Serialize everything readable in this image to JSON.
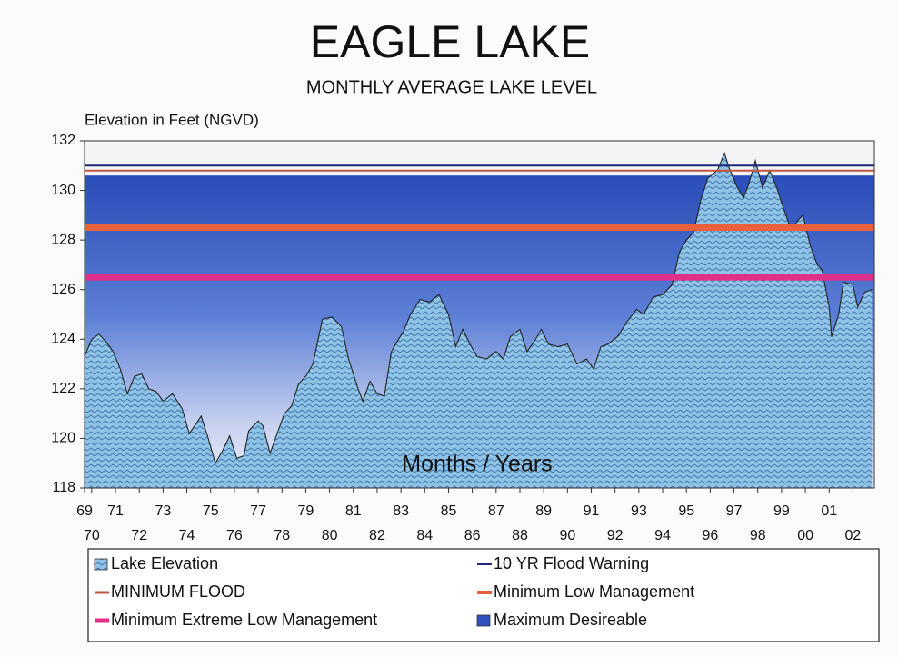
{
  "chart_data": {
    "type": "area",
    "title": "EAGLE LAKE",
    "subtitle": "MONTHLY AVERAGE LAKE LEVEL",
    "y_label": "Elevation in Feet (NGVD)",
    "x_label": "Months / Years",
    "xlim": [
      1969.7,
      2002.9
    ],
    "ylim": [
      118,
      132
    ],
    "yticks": [
      118,
      120,
      122,
      124,
      126,
      128,
      130,
      132
    ],
    "xticks": [
      {
        "value": 1969.7,
        "label": "69"
      },
      {
        "value": 1970,
        "label": "70"
      },
      {
        "value": 1971,
        "label": "71"
      },
      {
        "value": 1972,
        "label": "72"
      },
      {
        "value": 1973,
        "label": "73"
      },
      {
        "value": 1974,
        "label": "74"
      },
      {
        "value": 1975,
        "label": "75"
      },
      {
        "value": 1976,
        "label": "76"
      },
      {
        "value": 1977,
        "label": "77"
      },
      {
        "value": 1978,
        "label": "78"
      },
      {
        "value": 1979,
        "label": "79"
      },
      {
        "value": 1980,
        "label": "80"
      },
      {
        "value": 1981,
        "label": "81"
      },
      {
        "value": 1982,
        "label": "82"
      },
      {
        "value": 1983,
        "label": "83"
      },
      {
        "value": 1984,
        "label": "84"
      },
      {
        "value": 1985,
        "label": "85"
      },
      {
        "value": 1986,
        "label": "86"
      },
      {
        "value": 1987,
        "label": "87"
      },
      {
        "value": 1988,
        "label": "88"
      },
      {
        "value": 1989,
        "label": "89"
      },
      {
        "value": 1990,
        "label": "90"
      },
      {
        "value": 1991,
        "label": "91"
      },
      {
        "value": 1992,
        "label": "92"
      },
      {
        "value": 1993,
        "label": "93"
      },
      {
        "value": 1994,
        "label": "94"
      },
      {
        "value": 1995,
        "label": "95"
      },
      {
        "value": 1996,
        "label": "96"
      },
      {
        "value": 1997,
        "label": "97"
      },
      {
        "value": 1998,
        "label": "98"
      },
      {
        "value": 1999,
        "label": "99"
      },
      {
        "value": 2000,
        "label": "00"
      },
      {
        "value": 2001,
        "label": "01"
      },
      {
        "value": 2002,
        "label": "02"
      }
    ],
    "x": [
      1969.7,
      1970.0,
      1970.3,
      1970.6,
      1970.9,
      1971.2,
      1971.5,
      1971.8,
      1972.1,
      1972.4,
      1972.7,
      1973.0,
      1973.4,
      1973.8,
      1974.1,
      1974.4,
      1974.6,
      1974.9,
      1975.2,
      1975.5,
      1975.8,
      1976.1,
      1976.4,
      1976.6,
      1977.0,
      1977.2,
      1977.5,
      1977.8,
      1978.1,
      1978.4,
      1978.7,
      1979.0,
      1979.3,
      1979.7,
      1980.1,
      1980.5,
      1980.8,
      1981.2,
      1981.4,
      1981.7,
      1982.0,
      1982.3,
      1982.6,
      1982.9,
      1983.1,
      1983.4,
      1983.8,
      1984.2,
      1984.6,
      1985.0,
      1985.3,
      1985.6,
      1985.9,
      1986.2,
      1986.6,
      1987.0,
      1987.3,
      1987.6,
      1988.0,
      1988.3,
      1988.6,
      1988.9,
      1989.2,
      1989.6,
      1990.0,
      1990.4,
      1990.8,
      1991.1,
      1991.4,
      1991.7,
      1992.1,
      1992.5,
      1992.9,
      1993.2,
      1993.6,
      1994.0,
      1994.4,
      1994.7,
      1995.0,
      1995.3,
      1995.6,
      1995.9,
      1996.3,
      1996.6,
      1996.8,
      1997.1,
      1997.4,
      1997.6,
      1997.9,
      1998.2,
      1998.5,
      1998.8,
      1999.0,
      1999.4,
      1999.7,
      1999.9,
      2000.2,
      2000.5,
      2000.7,
      2001.0,
      2001.1,
      2001.4,
      2001.6,
      2002.0,
      2002.2,
      2002.5,
      2002.8
    ],
    "series": [
      {
        "name": "Lake Elevation",
        "color": "#8fc3e6",
        "values": [
          123.3,
          124.0,
          124.2,
          123.9,
          123.5,
          122.8,
          121.8,
          122.5,
          122.6,
          122.0,
          121.9,
          121.5,
          121.8,
          121.2,
          120.2,
          120.6,
          120.9,
          120.0,
          119.0,
          119.5,
          120.1,
          119.2,
          119.3,
          120.3,
          120.7,
          120.5,
          119.4,
          120.2,
          121.0,
          121.3,
          122.2,
          122.5,
          123.0,
          124.8,
          124.9,
          124.5,
          123.2,
          122.0,
          121.5,
          122.3,
          121.8,
          121.7,
          123.5,
          124.0,
          124.3,
          125.0,
          125.6,
          125.5,
          125.8,
          125.0,
          123.7,
          124.4,
          123.8,
          123.3,
          123.2,
          123.5,
          123.2,
          124.1,
          124.4,
          123.5,
          123.9,
          124.4,
          123.8,
          123.7,
          123.8,
          123.0,
          123.2,
          122.8,
          123.7,
          123.8,
          124.1,
          124.7,
          125.2,
          125.0,
          125.7,
          125.8,
          126.2,
          127.5,
          128.0,
          128.3,
          129.6,
          130.5,
          130.8,
          131.5,
          130.9,
          130.2,
          129.7,
          130.2,
          131.2,
          130.1,
          130.8,
          130.1,
          129.5,
          128.4,
          128.8,
          129.0,
          127.8,
          127.0,
          126.8,
          125.3,
          124.1,
          125.0,
          126.3,
          126.2,
          125.3,
          125.9,
          126.0
        ]
      }
    ],
    "reference_lines": [
      {
        "name": "10 YR Flood Warning",
        "color": "#1f2a78",
        "value": 131.0
      },
      {
        "name": "MINIMUM FLOOD",
        "color": "#c4553e",
        "value": 130.8
      },
      {
        "name": "Minimum Low Management",
        "color": "#e8603c",
        "value": 128.5
      },
      {
        "name": "Minimum Extreme Low Management",
        "color": "#e0308a",
        "value": 126.5
      }
    ],
    "band": {
      "name": "Maximum Desireable",
      "color": "#2f52bd",
      "value": 130.6
    }
  }
}
